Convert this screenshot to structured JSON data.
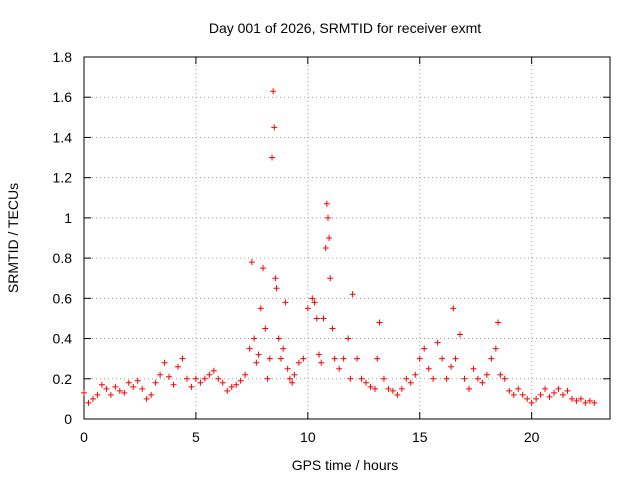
{
  "chart_data": {
    "type": "scatter",
    "title": "Day 001 of 2026, SRMTID for receiver exmt",
    "xlabel": "GPS time / hours",
    "ylabel": "SRMTID / TECUs",
    "xlim": [
      0,
      23.5
    ],
    "ylim": [
      0,
      1.8
    ],
    "x_ticks": [
      0,
      5,
      10,
      15,
      20
    ],
    "x_tick_labels": [
      "0",
      "5",
      "10",
      "15",
      "20"
    ],
    "y_ticks": [
      0,
      0.2,
      0.4,
      0.6,
      0.8,
      1.0,
      1.2,
      1.4,
      1.6,
      1.8
    ],
    "y_tick_labels": [
      "0",
      "0.2",
      "0.4",
      "0.6",
      "0.8",
      "1",
      "1.2",
      "1.4",
      "1.6",
      "1.8"
    ],
    "grid": true,
    "marker": "+",
    "color": "#ff0000",
    "series": [
      {
        "name": "SRMTID",
        "x": [
          0.0,
          0.2,
          0.4,
          0.6,
          0.8,
          1.0,
          1.2,
          1.4,
          1.6,
          1.8,
          2.0,
          2.2,
          2.4,
          2.6,
          2.8,
          3.0,
          3.2,
          3.4,
          3.6,
          3.8,
          4.0,
          4.2,
          4.4,
          4.6,
          4.8,
          5.0,
          5.2,
          5.4,
          5.6,
          5.8,
          6.0,
          6.2,
          6.4,
          6.6,
          6.8,
          7.0,
          7.2,
          7.4,
          7.5,
          7.6,
          7.7,
          7.8,
          7.9,
          8.0,
          8.1,
          8.2,
          8.3,
          8.4,
          8.45,
          8.5,
          8.55,
          8.6,
          8.7,
          8.8,
          8.9,
          9.0,
          9.1,
          9.2,
          9.3,
          9.4,
          9.6,
          9.8,
          10.0,
          10.2,
          10.3,
          10.4,
          10.5,
          10.6,
          10.7,
          10.8,
          10.85,
          10.9,
          10.95,
          11.0,
          11.1,
          11.2,
          11.4,
          11.6,
          11.8,
          11.9,
          12.0,
          12.2,
          12.4,
          12.6,
          12.8,
          13.0,
          13.1,
          13.2,
          13.4,
          13.6,
          13.8,
          14.0,
          14.2,
          14.4,
          14.6,
          14.8,
          15.0,
          15.2,
          15.4,
          15.6,
          15.8,
          16.0,
          16.2,
          16.4,
          16.5,
          16.6,
          16.8,
          17.0,
          17.2,
          17.4,
          17.6,
          17.8,
          18.0,
          18.2,
          18.4,
          18.5,
          18.6,
          18.8,
          19.0,
          19.2,
          19.4,
          19.6,
          19.8,
          20.0,
          20.2,
          20.4,
          20.6,
          20.8,
          21.0,
          21.2,
          21.4,
          21.6,
          21.8,
          22.0,
          22.2,
          22.4,
          22.6,
          22.8
        ],
        "y": [
          0.13,
          0.08,
          0.1,
          0.12,
          0.17,
          0.15,
          0.12,
          0.16,
          0.14,
          0.13,
          0.18,
          0.16,
          0.19,
          0.15,
          0.1,
          0.12,
          0.18,
          0.22,
          0.28,
          0.21,
          0.17,
          0.26,
          0.3,
          0.2,
          0.16,
          0.2,
          0.18,
          0.2,
          0.22,
          0.24,
          0.2,
          0.18,
          0.14,
          0.16,
          0.17,
          0.19,
          0.22,
          0.35,
          0.78,
          0.4,
          0.28,
          0.32,
          0.55,
          0.75,
          0.45,
          0.2,
          0.3,
          1.3,
          1.63,
          1.45,
          0.7,
          0.65,
          0.4,
          0.3,
          0.35,
          0.58,
          0.25,
          0.2,
          0.18,
          0.22,
          0.28,
          0.3,
          0.55,
          0.6,
          0.58,
          0.5,
          0.32,
          0.28,
          0.5,
          0.85,
          1.07,
          1.0,
          0.9,
          0.7,
          0.45,
          0.3,
          0.25,
          0.3,
          0.4,
          0.2,
          0.62,
          0.3,
          0.2,
          0.18,
          0.16,
          0.15,
          0.3,
          0.48,
          0.2,
          0.15,
          0.14,
          0.12,
          0.15,
          0.2,
          0.18,
          0.22,
          0.3,
          0.35,
          0.25,
          0.2,
          0.38,
          0.3,
          0.2,
          0.26,
          0.55,
          0.3,
          0.42,
          0.2,
          0.15,
          0.25,
          0.2,
          0.18,
          0.22,
          0.3,
          0.35,
          0.48,
          0.22,
          0.2,
          0.14,
          0.12,
          0.15,
          0.12,
          0.1,
          0.08,
          0.1,
          0.12,
          0.15,
          0.11,
          0.13,
          0.15,
          0.12,
          0.14,
          0.1,
          0.09,
          0.1,
          0.08,
          0.09,
          0.08
        ]
      }
    ]
  }
}
